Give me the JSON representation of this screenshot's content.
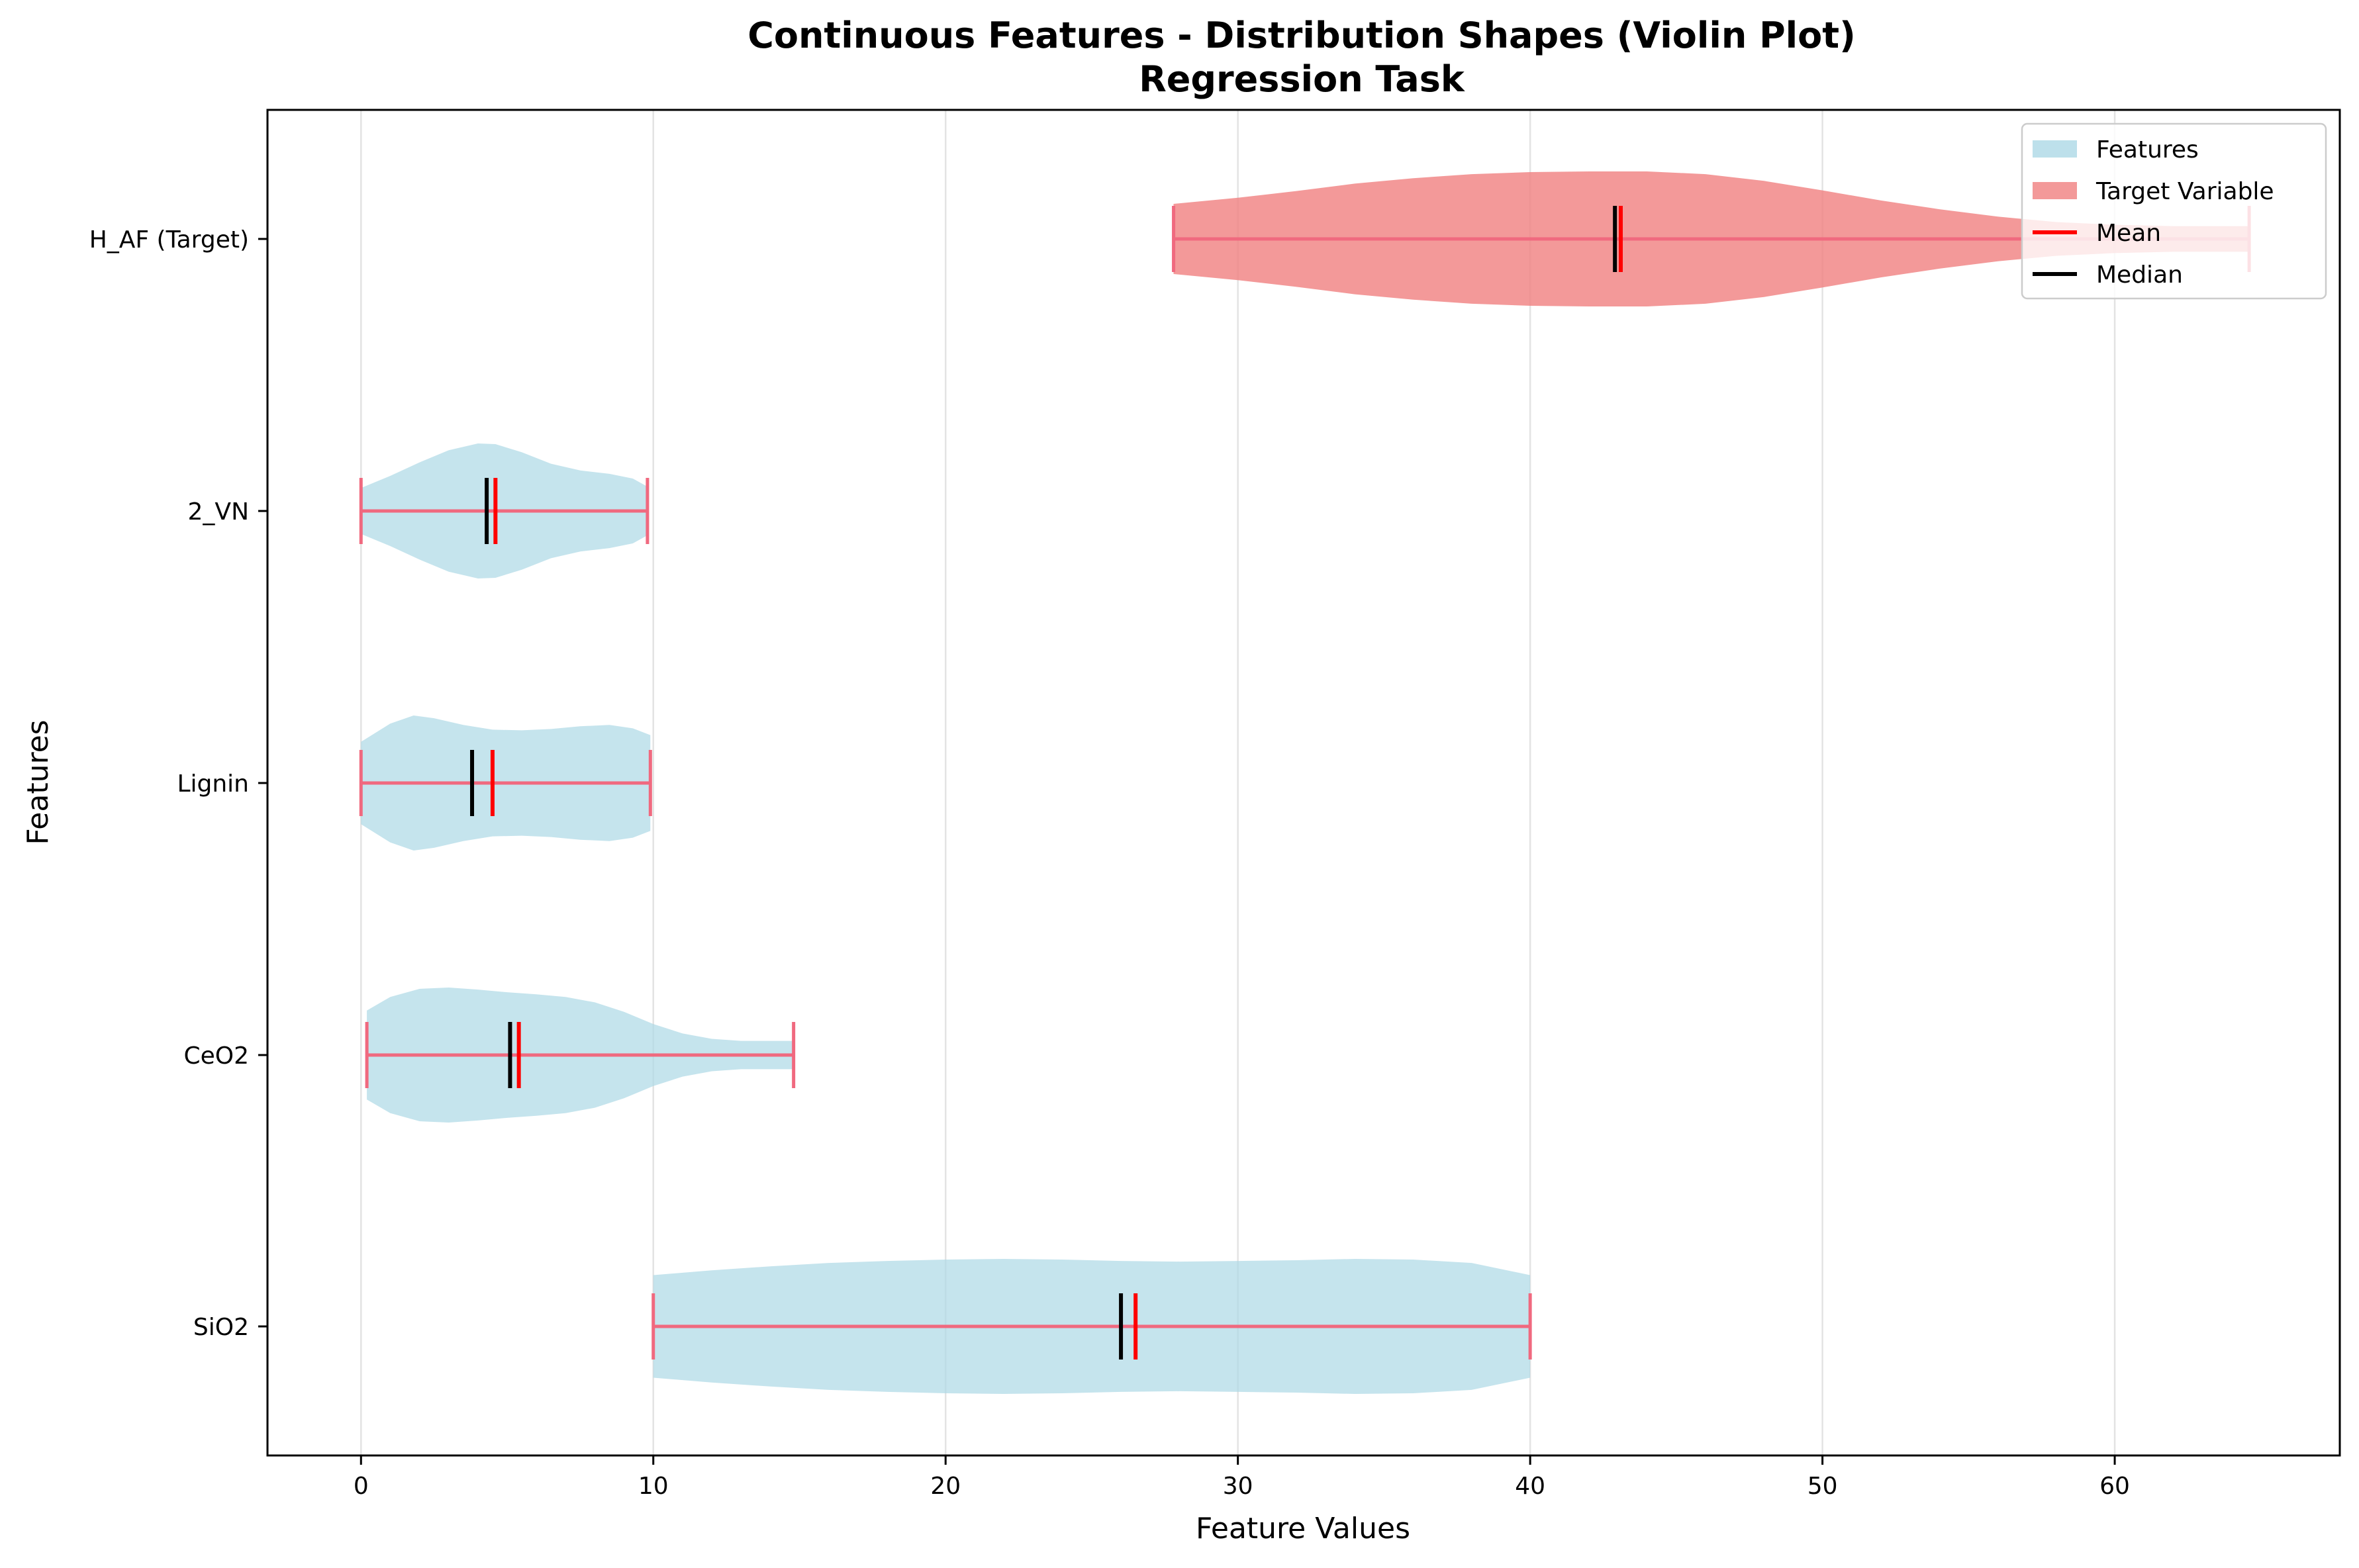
{
  "chart_data": {
    "type": "violin",
    "orientation": "horizontal",
    "title": "Continuous Features - Distribution Shapes (Violin Plot)",
    "subtitle": "Regression Task",
    "xlabel": "Feature Values",
    "ylabel": "Features",
    "xlim": [
      -3.2,
      67.7
    ],
    "xticks": [
      0,
      10,
      20,
      30,
      40,
      50,
      60
    ],
    "grid": "vertical",
    "legend_placement": "top-right",
    "colors": {
      "features": "#add8e6",
      "target": "#f08080",
      "extrema": "#f0697f",
      "mean": "#ff0000",
      "median": "#000000"
    },
    "legend": [
      {
        "label": "Features",
        "kind": "patch",
        "color": "#add8e6"
      },
      {
        "label": "Target Variable",
        "kind": "patch",
        "color": "#f08080"
      },
      {
        "label": "Mean",
        "kind": "line",
        "color": "#ff0000"
      },
      {
        "label": "Median",
        "kind": "line",
        "color": "#000000"
      }
    ],
    "series": [
      {
        "category": "SiO2",
        "group": "features",
        "min": 10.0,
        "max": 40.0,
        "mean": 26.5,
        "median": 26.0,
        "profile": [
          [
            10,
            0.76
          ],
          [
            12,
            0.83
          ],
          [
            14,
            0.89
          ],
          [
            16,
            0.94
          ],
          [
            18,
            0.97
          ],
          [
            20,
            0.99
          ],
          [
            22,
            1.0
          ],
          [
            24,
            0.99
          ],
          [
            26,
            0.97
          ],
          [
            28,
            0.96
          ],
          [
            30,
            0.97
          ],
          [
            32,
            0.98
          ],
          [
            34,
            1.0
          ],
          [
            36,
            0.99
          ],
          [
            38,
            0.94
          ],
          [
            40,
            0.76
          ]
        ]
      },
      {
        "category": "CeO2",
        "group": "features",
        "min": 0.2,
        "max": 14.8,
        "mean": 5.4,
        "median": 5.1,
        "profile": [
          [
            0.2,
            0.66
          ],
          [
            1,
            0.86
          ],
          [
            2,
            0.98
          ],
          [
            3,
            1.0
          ],
          [
            4,
            0.97
          ],
          [
            5,
            0.93
          ],
          [
            6,
            0.9
          ],
          [
            7,
            0.86
          ],
          [
            8,
            0.78
          ],
          [
            9,
            0.64
          ],
          [
            10,
            0.46
          ],
          [
            11,
            0.32
          ],
          [
            12,
            0.24
          ],
          [
            13,
            0.21
          ],
          [
            14,
            0.21
          ],
          [
            14.8,
            0.21
          ]
        ]
      },
      {
        "category": "Lignin",
        "group": "features",
        "min": 0.0,
        "max": 9.9,
        "mean": 4.5,
        "median": 3.8,
        "profile": [
          [
            0,
            0.61
          ],
          [
            1,
            0.88
          ],
          [
            1.8,
            1.0
          ],
          [
            2.5,
            0.96
          ],
          [
            3.5,
            0.86
          ],
          [
            4.5,
            0.79
          ],
          [
            5.5,
            0.78
          ],
          [
            6.5,
            0.8
          ],
          [
            7.5,
            0.84
          ],
          [
            8.5,
            0.86
          ],
          [
            9.3,
            0.81
          ],
          [
            9.9,
            0.71
          ]
        ]
      },
      {
        "category": "2_VN",
        "group": "features",
        "min": 0.0,
        "max": 9.8,
        "mean": 4.6,
        "median": 4.3,
        "profile": [
          [
            0,
            0.34
          ],
          [
            1,
            0.52
          ],
          [
            2,
            0.72
          ],
          [
            3,
            0.9
          ],
          [
            4,
            1.0
          ],
          [
            4.6,
            0.99
          ],
          [
            5.5,
            0.87
          ],
          [
            6.5,
            0.7
          ],
          [
            7.5,
            0.6
          ],
          [
            8.5,
            0.55
          ],
          [
            9.3,
            0.48
          ],
          [
            9.8,
            0.36
          ]
        ]
      },
      {
        "category": "H_AF (Target)",
        "group": "target",
        "min": 27.8,
        "max": 64.6,
        "mean": 43.1,
        "median": 42.9,
        "profile": [
          [
            27.8,
            0.52
          ],
          [
            30,
            0.61
          ],
          [
            32,
            0.71
          ],
          [
            34,
            0.82
          ],
          [
            36,
            0.9
          ],
          [
            38,
            0.96
          ],
          [
            40,
            0.99
          ],
          [
            42,
            1.0
          ],
          [
            44,
            1.0
          ],
          [
            46,
            0.96
          ],
          [
            48,
            0.86
          ],
          [
            50,
            0.72
          ],
          [
            52,
            0.57
          ],
          [
            54,
            0.44
          ],
          [
            56,
            0.33
          ],
          [
            58,
            0.25
          ],
          [
            60,
            0.21
          ],
          [
            62,
            0.19
          ],
          [
            64.6,
            0.19
          ]
        ]
      }
    ]
  }
}
